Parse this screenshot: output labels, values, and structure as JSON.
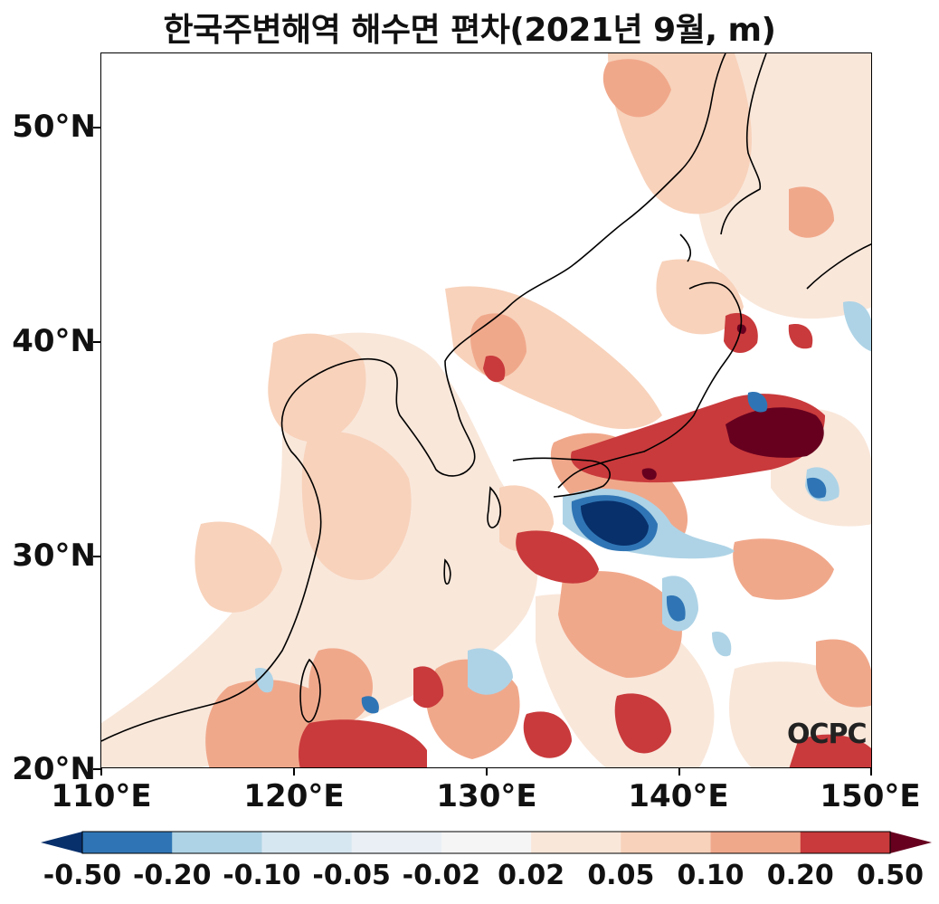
{
  "title": "한국주변해역 해수면 편차(2021년 9월, m)",
  "watermark": "OCPC",
  "y_ticks": [
    "50°N",
    "40°N",
    "30°N",
    "20°N"
  ],
  "x_ticks": [
    "110°E",
    "120°E",
    "130°E",
    "140°E",
    "150°E"
  ],
  "colorbar": {
    "labels": [
      "-0.50",
      "-0.20",
      "-0.10",
      "-0.05",
      "-0.02",
      "0.02",
      "0.05",
      "0.10",
      "0.20",
      "0.50"
    ],
    "colors": [
      "#08306b",
      "#2f75b5",
      "#aed3e6",
      "#d7e7f1",
      "#e9eff5",
      "#f5f5f5",
      "#f9e7da",
      "#f8d2bb",
      "#f0a88b",
      "#c93a3c",
      "#67001f"
    ]
  },
  "map_extent": {
    "lon": [
      110,
      150
    ],
    "lat": [
      20,
      53.5
    ]
  }
}
